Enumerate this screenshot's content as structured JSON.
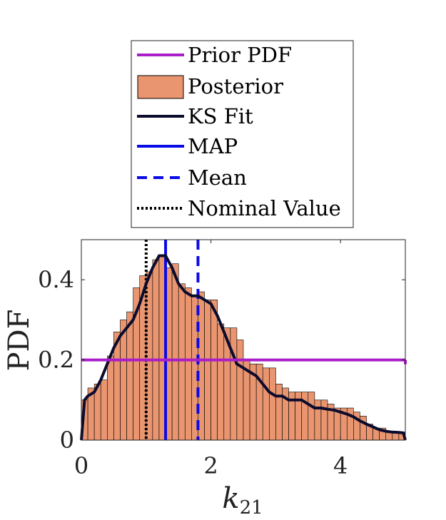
{
  "chart_data": {
    "type": "bar",
    "title": "",
    "xlabel": "k",
    "xlabel_subscript": "21",
    "ylabel": "PDF",
    "xlim": [
      0,
      5
    ],
    "ylim": [
      0,
      0.5
    ],
    "xticks": [
      0,
      2,
      4
    ],
    "yticks": [
      0,
      0.2,
      0.4
    ],
    "xtick_labels": [
      "0",
      "2",
      "4"
    ],
    "ytick_labels": [
      "0",
      "0.2",
      "0.4"
    ],
    "grid": false,
    "legend_position": "above",
    "histogram": {
      "name": "Posterior",
      "color": "#E9956F",
      "edge_color": "#000000",
      "bin_width": 0.1,
      "bin_starts": [
        0.0,
        0.1,
        0.2,
        0.3,
        0.4,
        0.5,
        0.6,
        0.7,
        0.8,
        0.9,
        1.0,
        1.1,
        1.2,
        1.3,
        1.4,
        1.5,
        1.6,
        1.7,
        1.8,
        1.9,
        2.0,
        2.1,
        2.2,
        2.3,
        2.4,
        2.5,
        2.6,
        2.7,
        2.8,
        2.9,
        3.0,
        3.1,
        3.2,
        3.3,
        3.4,
        3.5,
        3.6,
        3.7,
        3.8,
        3.9,
        4.0,
        4.1,
        4.2,
        4.3,
        4.4,
        4.5,
        4.6,
        4.7,
        4.8,
        4.9
      ],
      "values": [
        0.1,
        0.13,
        0.14,
        0.15,
        0.21,
        0.27,
        0.3,
        0.32,
        0.38,
        0.41,
        0.42,
        0.45,
        0.46,
        0.43,
        0.44,
        0.39,
        0.38,
        0.36,
        0.37,
        0.35,
        0.35,
        0.29,
        0.28,
        0.28,
        0.25,
        0.2,
        0.19,
        0.19,
        0.18,
        0.18,
        0.14,
        0.13,
        0.12,
        0.12,
        0.12,
        0.12,
        0.1,
        0.1,
        0.09,
        0.08,
        0.08,
        0.08,
        0.07,
        0.06,
        0.04,
        0.03,
        0.03,
        0.02,
        0.02,
        0.02
      ]
    },
    "series": [
      {
        "name": "KS Fit",
        "color": "#0B0B2E",
        "x": [
          0.0,
          0.05,
          0.1,
          0.2,
          0.3,
          0.4,
          0.5,
          0.6,
          0.7,
          0.8,
          0.9,
          1.0,
          1.1,
          1.2,
          1.3,
          1.4,
          1.5,
          1.6,
          1.7,
          1.8,
          1.9,
          2.0,
          2.1,
          2.2,
          2.3,
          2.4,
          2.5,
          2.6,
          2.7,
          2.8,
          2.9,
          3.0,
          3.1,
          3.2,
          3.3,
          3.4,
          3.5,
          3.6,
          3.7,
          3.8,
          3.9,
          4.0,
          4.1,
          4.2,
          4.3,
          4.4,
          4.5,
          4.6,
          4.7,
          4.8,
          4.9,
          4.97,
          5.0
        ],
        "y": [
          0.0,
          0.1,
          0.11,
          0.12,
          0.15,
          0.19,
          0.23,
          0.26,
          0.28,
          0.3,
          0.34,
          0.39,
          0.43,
          0.46,
          0.46,
          0.43,
          0.39,
          0.37,
          0.36,
          0.36,
          0.35,
          0.34,
          0.31,
          0.27,
          0.23,
          0.19,
          0.18,
          0.17,
          0.16,
          0.14,
          0.12,
          0.11,
          0.11,
          0.1,
          0.1,
          0.1,
          0.09,
          0.08,
          0.08,
          0.077,
          0.075,
          0.07,
          0.065,
          0.058,
          0.048,
          0.04,
          0.033,
          0.026,
          0.022,
          0.02,
          0.019,
          0.018,
          0.0
        ]
      },
      {
        "name": "Prior PDF",
        "color": "#A91EC8",
        "value": 0.2
      },
      {
        "name": "MAP",
        "color": "#0A0AE6",
        "x": 1.3
      },
      {
        "name": "Mean",
        "color": "#0A0AE6",
        "x": 1.8
      },
      {
        "name": "Nominal Value",
        "color": "#000000",
        "x": 1.0
      }
    ],
    "legend": [
      "Prior PDF",
      "Posterior",
      "KS Fit",
      "MAP",
      "Mean",
      "Nominal Value"
    ]
  }
}
